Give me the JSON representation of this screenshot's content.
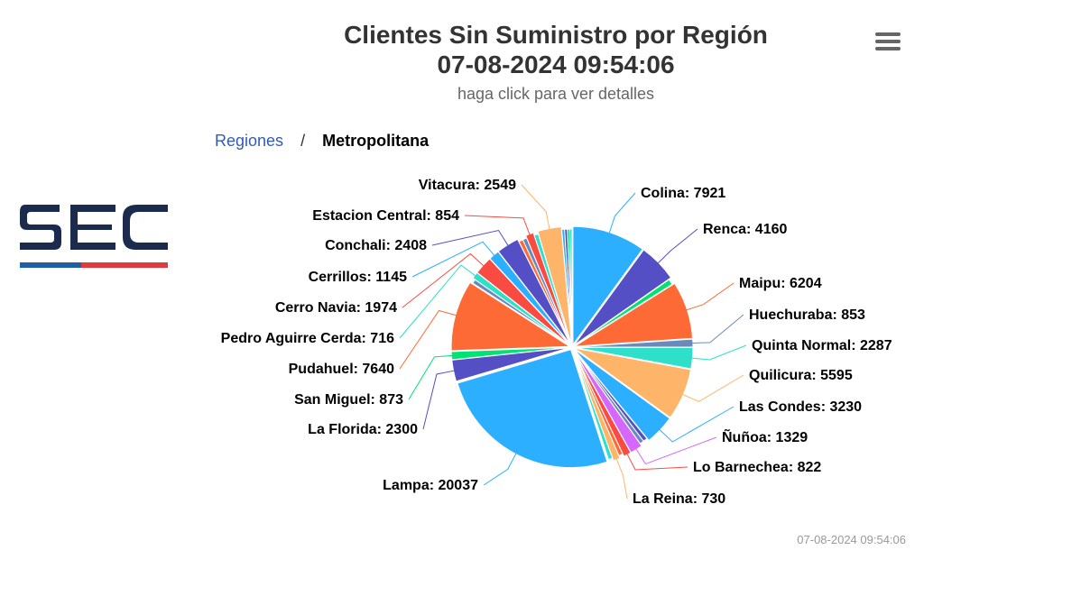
{
  "header": {
    "title": "Clientes Sin Suministro por Región",
    "datetime": "07-08-2024 09:54:06",
    "subtitle": "haga click para ver detalles"
  },
  "logo": {
    "text": "SEC"
  },
  "breadcrumb": {
    "parent": "Regiones",
    "separator": "/",
    "current": "Metropolitana"
  },
  "footer": {
    "timestamp": "07-08-2024 09:54:06"
  },
  "chart_data": {
    "type": "pie",
    "title": "Clientes Sin Suministro por Región",
    "slices": [
      {
        "name": "Colina",
        "value": 7921,
        "color": "#2caffe"
      },
      {
        "name": "Renca",
        "value": 4160,
        "color": "#544fc5"
      },
      {
        "name": "",
        "value": 600,
        "color": "#00e272"
      },
      {
        "name": "Maipu",
        "value": 6204,
        "color": "#fe6a35"
      },
      {
        "name": "Huechuraba",
        "value": 853,
        "color": "#6b8abc"
      },
      {
        "name": "Quinta Normal",
        "value": 2287,
        "color": "#2ee0ca"
      },
      {
        "name": "Quilicura",
        "value": 5595,
        "color": "#feb56a"
      },
      {
        "name": "Las Condes",
        "value": 3230,
        "color": "#2caffe"
      },
      {
        "name": "",
        "value": 450,
        "color": "#544fc5"
      },
      {
        "name": "",
        "value": 450,
        "color": "#6b8abc"
      },
      {
        "name": "Ñuñoa",
        "value": 1329,
        "color": "#d568fb"
      },
      {
        "name": "Lo Barnechea",
        "value": 822,
        "color": "#fa4b42"
      },
      {
        "name": "",
        "value": 450,
        "color": "#fe6a35"
      },
      {
        "name": "La Reina",
        "value": 730,
        "color": "#feb56a"
      },
      {
        "name": "",
        "value": 450,
        "color": "#2ee0ca"
      },
      {
        "name": "Lampa",
        "value": 20037,
        "color": "#2caffe"
      },
      {
        "name": "La Florida",
        "value": 2300,
        "color": "#544fc5"
      },
      {
        "name": "San Miguel",
        "value": 873,
        "color": "#00e272"
      },
      {
        "name": "Pudahuel",
        "value": 7640,
        "color": "#fe6a35"
      },
      {
        "name": "",
        "value": 450,
        "color": "#6b8abc"
      },
      {
        "name": "Pedro Aguirre Cerda",
        "value": 716,
        "color": "#2ee0ca"
      },
      {
        "name": "Cerro Navia",
        "value": 1974,
        "color": "#fa4b42"
      },
      {
        "name": "Cerrillos",
        "value": 1145,
        "color": "#2caffe"
      },
      {
        "name": "Conchali",
        "value": 2408,
        "color": "#544fc5"
      },
      {
        "name": "",
        "value": 450,
        "color": "#fe6a35"
      },
      {
        "name": "",
        "value": 450,
        "color": "#6b8abc"
      },
      {
        "name": "Estacion Central",
        "value": 854,
        "color": "#fa4b42"
      },
      {
        "name": "",
        "value": 450,
        "color": "#2ee0ca"
      },
      {
        "name": "Vitacura",
        "value": 2549,
        "color": "#feb56a"
      },
      {
        "name": "",
        "value": 300,
        "color": "#2caffe"
      },
      {
        "name": "",
        "value": 300,
        "color": "#544fc5"
      },
      {
        "name": "",
        "value": 250,
        "color": "#00e272"
      },
      {
        "name": "",
        "value": 250,
        "color": "#2ee0ca"
      }
    ]
  }
}
